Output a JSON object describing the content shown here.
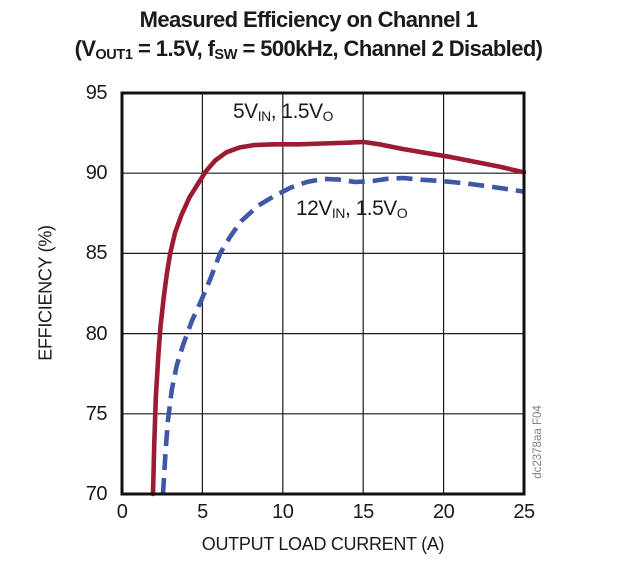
{
  "title": {
    "line1": "Measured Efficiency on Channel 1",
    "line2_segments": [
      {
        "text": "(V"
      },
      {
        "text": "OUT1",
        "sub": true
      },
      {
        "text": " = 1.5V, f"
      },
      {
        "text": "SW",
        "sub": true
      },
      {
        "text": " = 500kHz, Channel 2 Disabled)"
      }
    ]
  },
  "watermark": "dc2378aa F04",
  "chart_data": {
    "type": "line",
    "title": "Measured Efficiency on Channel 1 (VOUT1 = 1.5V, fSW = 500kHz, Channel 2 Disabled)",
    "xlabel": "OUTPUT LOAD CURRENT (A)",
    "ylabel": "EFFICIENCY (%)",
    "xlim": [
      0,
      25
    ],
    "ylim": [
      70,
      95
    ],
    "xticks": [
      0,
      5,
      10,
      15,
      20,
      25
    ],
    "yticks": [
      70,
      75,
      80,
      85,
      90,
      95
    ],
    "grid": true,
    "legend_position": "inline-labels",
    "frame_color": "#111111",
    "grid_color": "#1a1a1a",
    "series": [
      {
        "name": "5VIN, 1.5VO",
        "label_segments": [
          {
            "text": "5V"
          },
          {
            "text": "IN",
            "sub": true
          },
          {
            "text": ", 1.5V"
          },
          {
            "text": "O",
            "sub": true
          }
        ],
        "color": "#9c1b33",
        "line_style": "solid",
        "points": [
          [
            1.93,
            70.0
          ],
          [
            2.0,
            73.0
          ],
          [
            2.1,
            76.0
          ],
          [
            2.25,
            78.5
          ],
          [
            2.4,
            80.5
          ],
          [
            2.6,
            82.3
          ],
          [
            2.8,
            83.8
          ],
          [
            3.0,
            85.0
          ],
          [
            3.3,
            86.3
          ],
          [
            3.7,
            87.4
          ],
          [
            4.2,
            88.5
          ],
          [
            4.7,
            89.3
          ],
          [
            5.2,
            90.1
          ],
          [
            5.8,
            90.8
          ],
          [
            6.5,
            91.3
          ],
          [
            7.3,
            91.6
          ],
          [
            8.2,
            91.75
          ],
          [
            9.5,
            91.8
          ],
          [
            11.0,
            91.8
          ],
          [
            12.5,
            91.85
          ],
          [
            14.0,
            91.9
          ],
          [
            15.0,
            91.95
          ],
          [
            16.0,
            91.8
          ],
          [
            17.5,
            91.5
          ],
          [
            19.0,
            91.25
          ],
          [
            20.5,
            91.0
          ],
          [
            22.0,
            90.7
          ],
          [
            23.5,
            90.4
          ],
          [
            25.0,
            90.05
          ]
        ]
      },
      {
        "name": "12VIN, 1.5VO",
        "label_segments": [
          {
            "text": "12V"
          },
          {
            "text": "IN",
            "sub": true
          },
          {
            "text": ", 1.5V"
          },
          {
            "text": "O",
            "sub": true
          }
        ],
        "color": "#3e57a8",
        "line_style": "dashed",
        "points": [
          [
            2.55,
            70.0
          ],
          [
            2.7,
            72.5
          ],
          [
            2.85,
            74.5
          ],
          [
            3.1,
            76.5
          ],
          [
            3.4,
            78.0
          ],
          [
            3.8,
            79.3
          ],
          [
            4.35,
            80.8
          ],
          [
            4.9,
            82.0
          ],
          [
            5.45,
            83.3
          ],
          [
            6.1,
            85.0
          ],
          [
            6.7,
            86.0
          ],
          [
            7.4,
            87.0
          ],
          [
            8.5,
            88.0
          ],
          [
            9.5,
            88.6
          ],
          [
            10.5,
            89.1
          ],
          [
            11.5,
            89.45
          ],
          [
            12.5,
            89.65
          ],
          [
            13.5,
            89.6
          ],
          [
            14.5,
            89.45
          ],
          [
            15.5,
            89.5
          ],
          [
            16.5,
            89.65
          ],
          [
            17.5,
            89.7
          ],
          [
            18.5,
            89.6
          ],
          [
            20.0,
            89.5
          ],
          [
            21.5,
            89.35
          ],
          [
            23.0,
            89.15
          ],
          [
            24.0,
            89.0
          ],
          [
            25.0,
            88.85
          ]
        ]
      }
    ]
  }
}
